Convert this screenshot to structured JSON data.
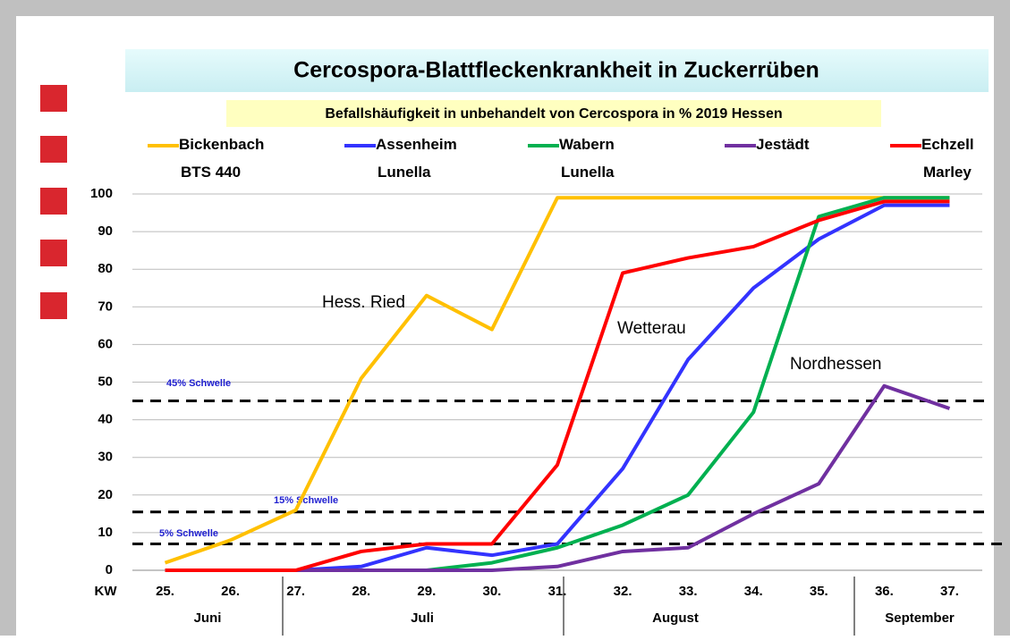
{
  "chart_data": {
    "type": "line",
    "title": "Cercospora-Blattfleckenkrankheit in Zuckerrüben",
    "subtitle": "Befallshäufigkeit in unbehandelt von Cercospora in %  2019 Hessen",
    "x_label": "KW",
    "categories": [
      "25.",
      "26.",
      "27.",
      "28.",
      "29.",
      "30.",
      "31.",
      "32.",
      "33.",
      "34.",
      "35.",
      "36.",
      "37."
    ],
    "months": [
      "Juni",
      "Juli",
      "August",
      "September"
    ],
    "series": [
      {
        "name": "Bickenbach\nBTS 440",
        "color": "#ffc000",
        "values": [
          2,
          8,
          16,
          51,
          73,
          64,
          99,
          99,
          99,
          99,
          99,
          99,
          99
        ]
      },
      {
        "name": "Assenheim\nLunella",
        "color": "#3333ff",
        "values": [
          0,
          0,
          0,
          1,
          6,
          4,
          7,
          27,
          56,
          75,
          88,
          97,
          97
        ]
      },
      {
        "name": "Wabern\nLunella",
        "color": "#00b050",
        "values": [
          0,
          0,
          0,
          0,
          0,
          2,
          6,
          12,
          20,
          42,
          94,
          99,
          99
        ]
      },
      {
        "name": "Jestädt",
        "color": "#7030a0",
        "values": [
          0,
          0,
          0,
          0,
          0,
          0,
          1,
          5,
          6,
          15,
          23,
          49,
          43
        ]
      },
      {
        "name": "Echzell\nMarley",
        "color": "#ff0000",
        "values": [
          0,
          0,
          0,
          5,
          7,
          7,
          28,
          79,
          83,
          86,
          93,
          98,
          98
        ]
      }
    ],
    "thresholds": [
      {
        "value": 45,
        "label": "45% Schwelle"
      },
      {
        "value": 15.5,
        "label": "15% Schwelle"
      },
      {
        "value": 7,
        "label": "5% Schwelle"
      }
    ],
    "annotations": [
      "Hess. Ried",
      "Wetterau",
      "Nordhessen"
    ],
    "ylim": [
      0,
      100
    ],
    "yticks": [
      0,
      10,
      20,
      30,
      40,
      50,
      60,
      70,
      80,
      90,
      100
    ],
    "grid": true
  }
}
